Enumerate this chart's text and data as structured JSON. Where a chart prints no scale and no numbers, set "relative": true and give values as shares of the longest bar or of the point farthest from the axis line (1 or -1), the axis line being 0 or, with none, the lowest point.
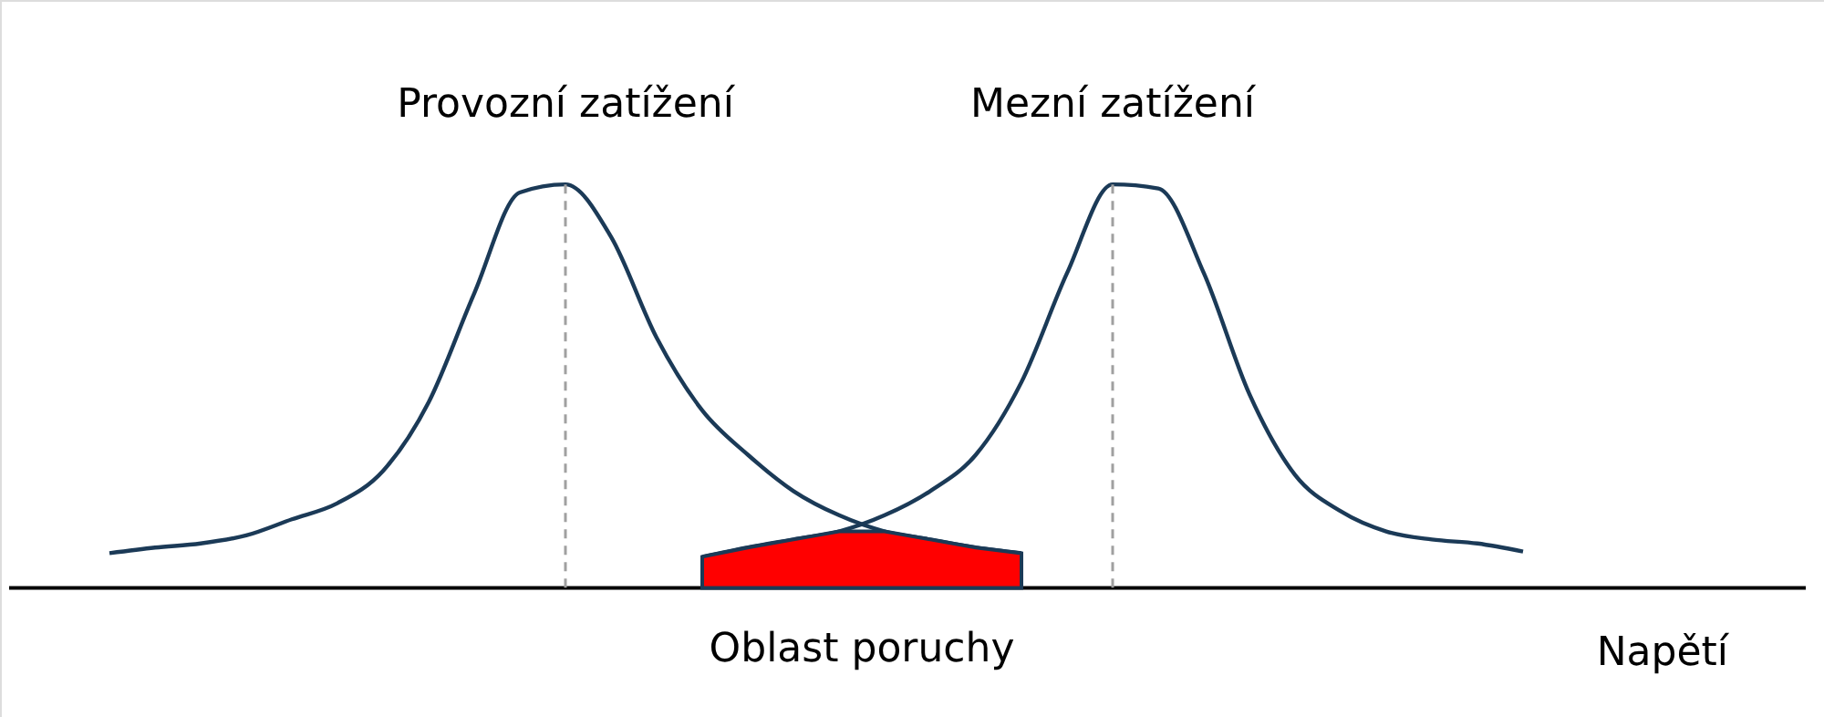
{
  "chart_data": {
    "type": "line",
    "relative": true,
    "xlabel": "Napětí",
    "legend": false,
    "marker": "none",
    "line_style": "solid",
    "categories": [
      null,
      null,
      null,
      null,
      null,
      null,
      null,
      null,
      null,
      null,
      null,
      null,
      null,
      null,
      null,
      null,
      null,
      null,
      null,
      null,
      null,
      null,
      null,
      null,
      null,
      null,
      null,
      null,
      null,
      null,
      null,
      null,
      null,
      null,
      null,
      null,
      null,
      null
    ],
    "series": [
      {
        "name": "Provozní zatížení",
        "color": "#1b3a57",
        "values": [
          null,
          0.086,
          0.1,
          0.11,
          0.13,
          0.17,
          0.21,
          0.29,
          0.46,
          0.73,
          0.98,
          1.0,
          0.87,
          0.62,
          0.44,
          0.33,
          0.24,
          0.18,
          0.14,
          0.12,
          0.1,
          0.086,
          null,
          null,
          null,
          null,
          null,
          null,
          null,
          null,
          null,
          null,
          null,
          null,
          null,
          null,
          null,
          null
        ]
      },
      {
        "name": "Mezní zatížení",
        "color": "#1b3a57",
        "values": [
          null,
          null,
          null,
          null,
          null,
          null,
          null,
          null,
          null,
          null,
          null,
          null,
          null,
          null,
          0.077,
          0.1,
          0.12,
          0.14,
          0.18,
          0.24,
          0.33,
          0.51,
          0.78,
          1.0,
          0.99,
          0.78,
          0.48,
          0.28,
          0.19,
          0.14,
          0.12,
          0.11,
          0.09,
          null,
          null,
          null,
          null,
          null
        ]
      },
      {
        "name": "Oblast poruchy",
        "type": "area",
        "color": "#ff0000",
        "values": [
          null,
          null,
          null,
          null,
          null,
          null,
          null,
          null,
          null,
          null,
          null,
          null,
          null,
          null,
          0.077,
          0.1,
          0.12,
          0.14,
          0.14,
          0.12,
          0.1,
          0.086,
          null,
          null,
          null,
          null,
          null,
          null,
          null,
          null,
          null,
          null,
          null,
          null,
          null,
          null,
          null,
          null
        ]
      }
    ]
  }
}
